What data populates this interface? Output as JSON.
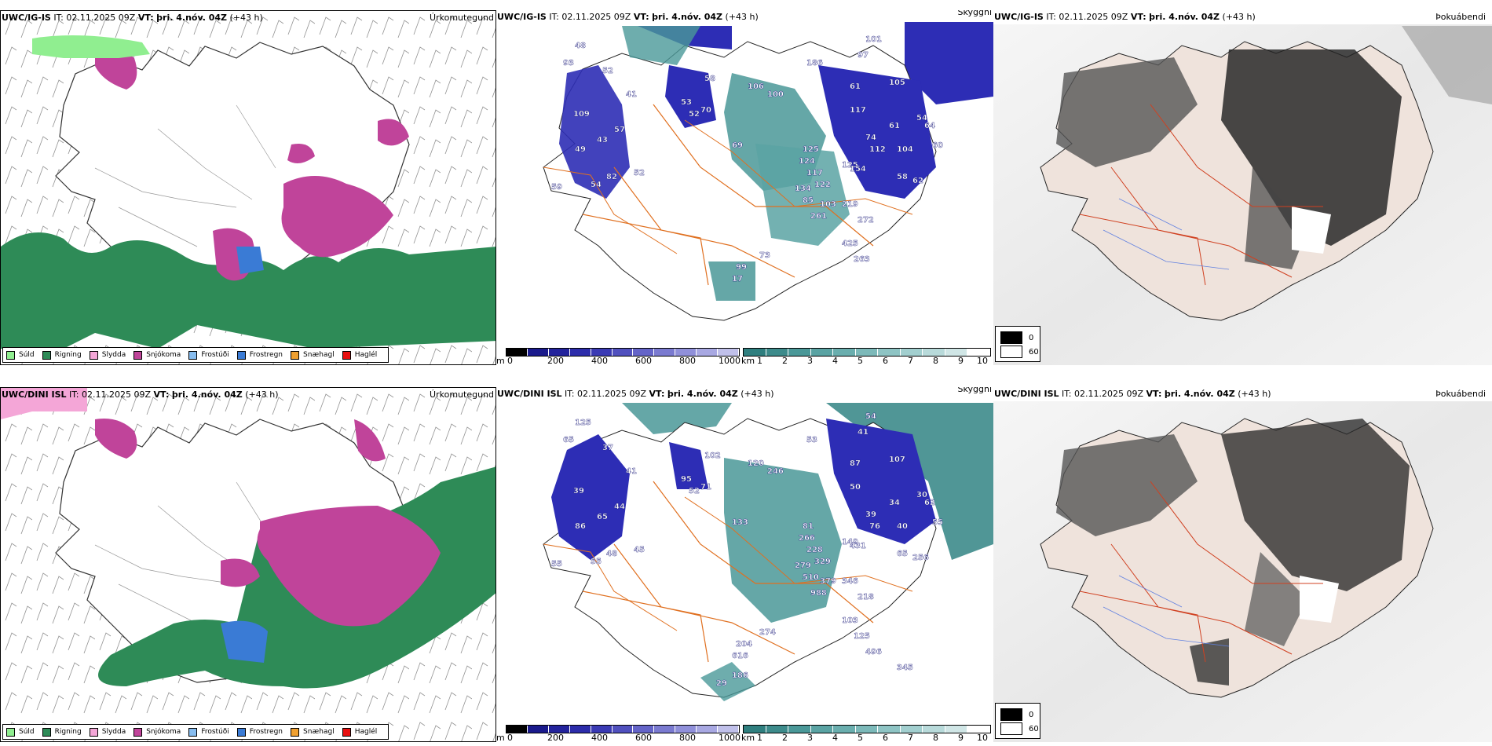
{
  "rows": [
    {
      "model": "UWC/IG-IS",
      "it_label": "IT:",
      "it_value": "02.11.2025 09Z",
      "vt_label": "VT:",
      "vt_value": "þri. 4.nóv. 04Z",
      "lead": "(+43 h)",
      "panels": {
        "precip_title": "Úrkomutegund",
        "visibility_title": "Skyggni",
        "fog_title": "Þokuábendi",
        "visibility_labels": [
          "48",
          "93",
          "52",
          "41",
          "109",
          "57",
          "43",
          "49",
          "82",
          "52",
          "54",
          "59",
          "53",
          "52",
          "70",
          "58",
          "106",
          "69",
          "100",
          "186",
          "101",
          "97",
          "105",
          "61",
          "117",
          "74",
          "112",
          "104",
          "61",
          "54",
          "64",
          "60",
          "58",
          "62",
          "125",
          "124",
          "117",
          "134",
          "122",
          "85",
          "103",
          "219",
          "261",
          "272",
          "125",
          "154",
          "99",
          "73",
          "17",
          "425",
          "263"
        ]
      }
    },
    {
      "model": "UWC/DINI ISL",
      "it_label": "IT:",
      "it_value": "02.11.2025 09Z",
      "vt_label": "VT:",
      "vt_value": "þri. 4.nóv. 04Z",
      "lead": "(+43 h)",
      "panels": {
        "precip_title": "Úrkomutegund",
        "visibility_title": "Skyggni",
        "fog_title": "Þokuábendi",
        "visibility_labels": [
          "125",
          "65",
          "37",
          "41",
          "39",
          "44",
          "65",
          "86",
          "48",
          "45",
          "55",
          "55",
          "95",
          "52",
          "71",
          "102",
          "120",
          "133",
          "246",
          "53",
          "54",
          "41",
          "107",
          "87",
          "50",
          "39",
          "76",
          "40",
          "34",
          "30",
          "62",
          "55",
          "65",
          "256",
          "81",
          "266",
          "228",
          "279",
          "329",
          "510",
          "379",
          "346",
          "988",
          "218",
          "149",
          "431",
          "204",
          "274",
          "616",
          "103",
          "125",
          "496",
          "186",
          "29",
          "345"
        ]
      }
    }
  ],
  "precip_legend": [
    {
      "label": "Súld",
      "color": "#90ee90"
    },
    {
      "label": "Rigning",
      "color": "#2e8b57"
    },
    {
      "label": "Slydda",
      "color": "#f4a6d7"
    },
    {
      "label": "Snjókoma",
      "color": "#c0449a"
    },
    {
      "label": "Frostúði",
      "color": "#87bdf0"
    },
    {
      "label": "Frostregn",
      "color": "#3a7bd5"
    },
    {
      "label": "Snæhagl",
      "color": "#f0a030"
    },
    {
      "label": "Haglél",
      "color": "#e81010"
    }
  ],
  "visibility_colorbars": {
    "cloudbase": {
      "unit": "m",
      "ticks": [
        "0",
        "200",
        "400",
        "600",
        "800",
        "1000"
      ],
      "colors": [
        "#000000",
        "#1a1a8c",
        "#23239c",
        "#2c2caa",
        "#3a3ab4",
        "#5050be",
        "#6464c8",
        "#7a7ad0",
        "#9090da",
        "#a8a8e2",
        "#c0c0ea"
      ]
    },
    "visibility": {
      "unit": "km",
      "ticks": [
        "1",
        "2",
        "3",
        "4",
        "5",
        "6",
        "7",
        "8",
        "9",
        "10"
      ],
      "colors": [
        "#2f7f7f",
        "#3d8b8b",
        "#4a9898",
        "#5aa3a3",
        "#6aaeae",
        "#7cb9b9",
        "#8ec4c4",
        "#a2cfcf",
        "#b8dada",
        "#d0e6e6",
        "#ffffff"
      ]
    }
  },
  "fog_legend": [
    {
      "label": "0",
      "color": "#000000"
    },
    {
      "label": "60",
      "color": "#ffffff"
    }
  ],
  "colors": {
    "rain": "#2e8b57",
    "snow": "#c0449a",
    "drizzle": "#90ee90",
    "sleet": "#f4a6d7",
    "freezing_rain": "#3a7bd5",
    "cloud_low": "#1a1a9c",
    "vis_teal": "#2f8f8f",
    "roads": "#e07020",
    "land_fog": "#efe3dc"
  }
}
